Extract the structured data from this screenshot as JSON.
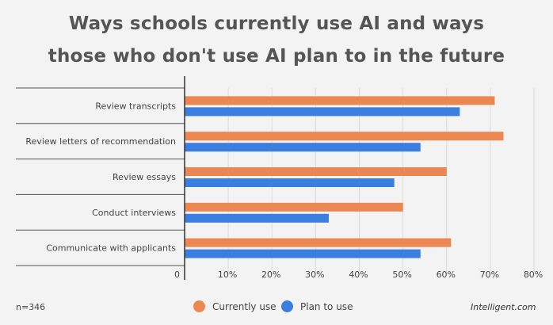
{
  "title_lines": [
    "Ways schools currently use AI and ways",
    "those who don't use AI plan to in the future"
  ],
  "footnote": "n=346",
  "brand": "Intelligent.com",
  "chart_data": {
    "type": "bar",
    "orientation": "horizontal",
    "categories": [
      "Review transcripts",
      "Review letters of recommendation",
      "Review essays",
      "Conduct interviews",
      "Communicate with applicants"
    ],
    "series": [
      {
        "name": "Currently use",
        "color": "#ea8753",
        "values": [
          71,
          73,
          60,
          50,
          61
        ]
      },
      {
        "name": "Plan to use",
        "color": "#3a7ee0",
        "values": [
          63,
          54,
          48,
          33,
          54
        ]
      }
    ],
    "x_ticks": [
      "0",
      "10%",
      "20%",
      "30%",
      "40%",
      "50%",
      "60%",
      "70%",
      "80%"
    ],
    "xlim": [
      0,
      80
    ],
    "grid": true,
    "legend_position": "bottom"
  }
}
